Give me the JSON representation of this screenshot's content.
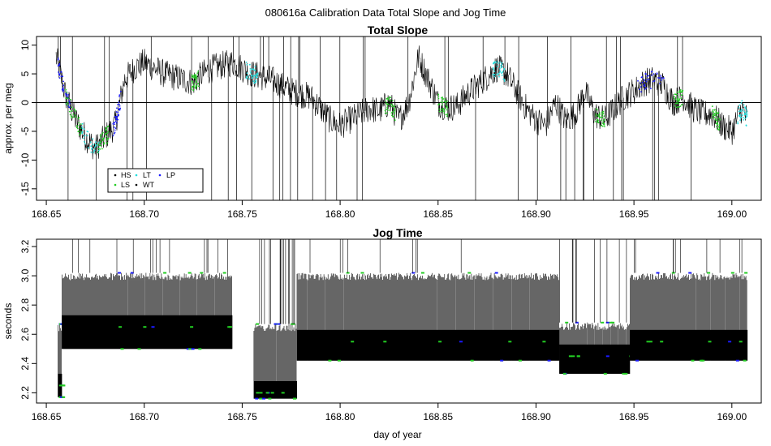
{
  "page_title": "080616a   Calibration Data Total Slope and Jog Time",
  "x_label": "day of year",
  "colors": {
    "series_default": "#000000",
    "HS": "#000000",
    "LS": "#22cc22",
    "LT": "#22dddd",
    "WT": "#000000",
    "LP": "#1a1aff"
  },
  "chart_data": [
    {
      "type": "line",
      "title": "Total Slope",
      "ylabel": "approx. per meg",
      "xlim": [
        168.645,
        169.015
      ],
      "ylim": [
        -17,
        11.5
      ],
      "x_ticks": [
        168.65,
        168.7,
        168.75,
        168.8,
        168.85,
        168.9,
        168.95,
        169.0
      ],
      "x_tick_labels": [
        "168.65",
        "168.70",
        "168.75",
        "168.80",
        "168.85",
        "168.90",
        "168.95",
        "169.00"
      ],
      "y_ticks": [
        10,
        5,
        0,
        -5,
        -10,
        -15
      ],
      "y_tick_labels": [
        "10",
        "5",
        "0",
        "-5",
        "-10",
        "-15"
      ],
      "reference_line_y": 0,
      "legend": {
        "placement": "bottom-left",
        "entries": [
          {
            "label": "HS",
            "color": "#000000"
          },
          {
            "label": "LT",
            "color": "#22dddd"
          },
          {
            "label": "LP",
            "color": "#1a1aff"
          },
          {
            "label": "LS",
            "color": "#22cc22"
          },
          {
            "label": "WT",
            "color": "#000000"
          }
        ]
      },
      "series_trend": {
        "x": [
          168.655,
          168.66,
          168.665,
          168.67,
          168.675,
          168.68,
          168.685,
          168.69,
          168.695,
          168.7,
          168.705,
          168.71,
          168.715,
          168.72,
          168.725,
          168.73,
          168.735,
          168.74,
          168.745,
          168.75,
          168.755,
          168.76,
          168.765,
          168.77,
          168.775,
          168.78,
          168.785,
          168.79,
          168.795,
          168.8,
          168.805,
          168.81,
          168.815,
          168.82,
          168.825,
          168.83,
          168.835,
          168.84,
          168.845,
          168.85,
          168.855,
          168.86,
          168.865,
          168.87,
          168.875,
          168.88,
          168.885,
          168.89,
          168.895,
          168.9,
          168.905,
          168.91,
          168.915,
          168.92,
          168.925,
          168.93,
          168.935,
          168.94,
          168.945,
          168.95,
          168.955,
          168.96,
          168.965,
          168.97,
          168.975,
          168.98,
          168.985,
          168.99,
          168.995,
          169.0,
          169.005,
          169.008
        ],
        "y": [
          8,
          1,
          -3,
          -6,
          -8,
          -6,
          -4,
          4,
          6,
          7,
          6,
          5,
          4.5,
          4,
          3.5,
          5,
          6,
          6.5,
          7,
          6,
          5,
          4.5,
          4,
          3,
          2,
          1.5,
          1,
          -1,
          -3,
          -4,
          -3,
          -2,
          -1,
          -1.5,
          0,
          -3,
          0,
          8,
          4,
          0,
          -1,
          -0.5,
          1.5,
          3,
          4.5,
          6,
          5,
          2,
          -1,
          -3,
          -4,
          0,
          -3,
          -2,
          2,
          -2,
          -3,
          -1,
          1,
          2,
          3.5,
          4,
          3,
          0,
          1,
          -1,
          -2,
          -2,
          -4,
          -5,
          -1,
          -3
        ]
      }
    },
    {
      "type": "line",
      "title": "Jog Time",
      "ylabel": "seconds",
      "xlim": [
        168.645,
        169.015
      ],
      "ylim": [
        2.13,
        3.25
      ],
      "x_ticks": [
        168.65,
        168.7,
        168.75,
        168.8,
        168.85,
        168.9,
        168.95,
        169.0
      ],
      "x_tick_labels": [
        "168.65",
        "168.70",
        "168.75",
        "168.80",
        "168.85",
        "168.90",
        "168.95",
        "169.00"
      ],
      "y_ticks": [
        3.2,
        3.0,
        2.8,
        2.6,
        2.4,
        2.2
      ],
      "y_tick_labels": [
        "3.2",
        "3.0",
        "2.8",
        "2.6",
        "2.4",
        "2.2"
      ],
      "segments": [
        {
          "x_start": 168.656,
          "x_end": 168.658,
          "low": 2.17,
          "high": 2.67,
          "mid": 2.25
        },
        {
          "x_start": 168.658,
          "x_end": 168.745,
          "low": 2.5,
          "high": 3.02,
          "mid": 2.65
        },
        {
          "x_start": 168.756,
          "x_end": 168.778,
          "low": 2.16,
          "high": 2.67,
          "mid": 2.2
        },
        {
          "x_start": 168.778,
          "x_end": 168.912,
          "low": 2.42,
          "high": 3.02,
          "mid": 2.55
        },
        {
          "x_start": 168.912,
          "x_end": 168.948,
          "low": 2.33,
          "high": 2.68,
          "mid": 2.45
        },
        {
          "x_start": 168.948,
          "x_end": 169.008,
          "low": 2.42,
          "high": 3.02,
          "mid": 2.55
        }
      ]
    }
  ]
}
